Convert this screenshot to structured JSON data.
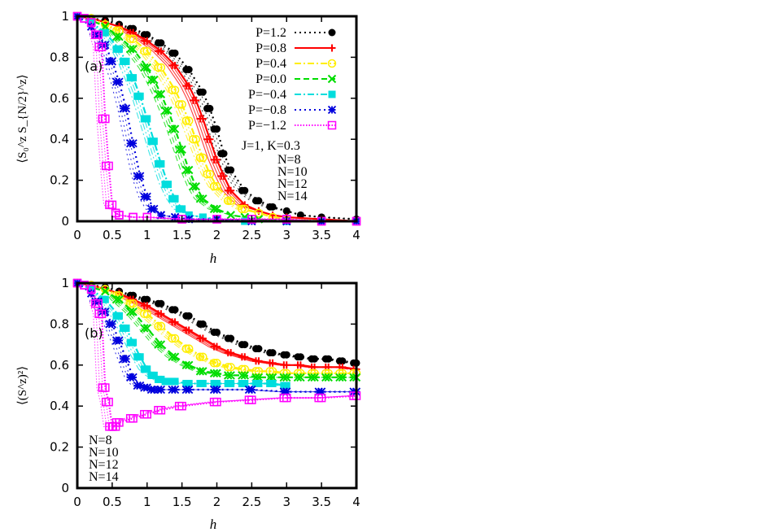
{
  "chart_data": [
    {
      "type": "line",
      "panel_label": "(a)",
      "xlabel": "h",
      "ylabel": "⟨S₀^z S_{N/2}^z⟩",
      "xlim": [
        0,
        4
      ],
      "ylim": [
        0,
        1
      ],
      "xticks": [
        "0",
        "0.5",
        "1",
        "1.5",
        "2",
        "2.5",
        "3",
        "3.5",
        "4"
      ],
      "yticks": [
        "0",
        "0.2",
        "0.4",
        "0.6",
        "0.8",
        "1"
      ],
      "grid": false,
      "legend_position": "top-right",
      "annotation": "J=1, K=0.3",
      "sizes": [
        "N=8",
        "N=10",
        "N=12",
        "N=14"
      ],
      "series": [
        {
          "name": "P=1.2",
          "color": "#000000",
          "marker": "filled-circle",
          "dash": "dot",
          "x": [
            0,
            0.2,
            0.4,
            0.6,
            0.8,
            1.0,
            1.2,
            1.4,
            1.6,
            1.8,
            1.9,
            2.0,
            2.1,
            2.2,
            2.4,
            2.6,
            2.8,
            3.0,
            3.2,
            3.5,
            4.0
          ],
          "y": [
            1.0,
            0.99,
            0.98,
            0.96,
            0.94,
            0.91,
            0.87,
            0.82,
            0.74,
            0.63,
            0.55,
            0.45,
            0.33,
            0.25,
            0.15,
            0.1,
            0.07,
            0.05,
            0.03,
            0.02,
            0.01
          ]
        },
        {
          "name": "P=0.8",
          "color": "#ff0000",
          "marker": "plus",
          "dash": "solid",
          "x": [
            0,
            0.2,
            0.4,
            0.6,
            0.8,
            1.0,
            1.2,
            1.4,
            1.6,
            1.7,
            1.8,
            1.9,
            2.0,
            2.1,
            2.2,
            2.4,
            2.6,
            2.8,
            3.0,
            3.5,
            4.0
          ],
          "y": [
            1.0,
            0.99,
            0.97,
            0.95,
            0.92,
            0.88,
            0.83,
            0.76,
            0.66,
            0.59,
            0.5,
            0.4,
            0.3,
            0.22,
            0.15,
            0.08,
            0.05,
            0.03,
            0.02,
            0.01,
            0.0
          ]
        },
        {
          "name": "P=0.4",
          "color": "#ffee00",
          "marker": "open-circle",
          "dash": "dashdot",
          "x": [
            0,
            0.2,
            0.4,
            0.6,
            0.8,
            1.0,
            1.2,
            1.4,
            1.5,
            1.6,
            1.7,
            1.8,
            1.9,
            2.0,
            2.2,
            2.4,
            2.6,
            2.8,
            3.0,
            3.5,
            4.0
          ],
          "y": [
            1.0,
            0.99,
            0.96,
            0.93,
            0.89,
            0.83,
            0.75,
            0.64,
            0.57,
            0.49,
            0.4,
            0.31,
            0.23,
            0.17,
            0.1,
            0.06,
            0.04,
            0.02,
            0.01,
            0.0,
            0.0
          ]
        },
        {
          "name": "P=0.0",
          "color": "#00dd00",
          "marker": "cross",
          "dash": "dash",
          "x": [
            0,
            0.2,
            0.4,
            0.6,
            0.8,
            1.0,
            1.1,
            1.2,
            1.3,
            1.4,
            1.5,
            1.6,
            1.7,
            1.8,
            2.0,
            2.2,
            2.4,
            2.6,
            3.0,
            3.5,
            4.0
          ],
          "y": [
            1.0,
            0.98,
            0.95,
            0.9,
            0.84,
            0.75,
            0.69,
            0.62,
            0.54,
            0.45,
            0.35,
            0.25,
            0.17,
            0.11,
            0.06,
            0.03,
            0.02,
            0.01,
            0.0,
            0.0,
            0.0
          ]
        },
        {
          "name": "P=−0.4",
          "color": "#00dddd",
          "marker": "filled-square",
          "dash": "dashdot",
          "x": [
            0,
            0.2,
            0.4,
            0.6,
            0.7,
            0.8,
            0.9,
            1.0,
            1.1,
            1.2,
            1.3,
            1.4,
            1.5,
            1.6,
            1.8,
            2.0,
            2.4,
            3.0,
            3.5,
            4.0
          ],
          "y": [
            1.0,
            0.97,
            0.92,
            0.84,
            0.78,
            0.7,
            0.61,
            0.5,
            0.39,
            0.28,
            0.18,
            0.11,
            0.06,
            0.03,
            0.02,
            0.01,
            0.0,
            0.0,
            0.0,
            0.0
          ]
        },
        {
          "name": "P=−0.8",
          "color": "#0000dd",
          "marker": "star",
          "dash": "dot",
          "x": [
            0,
            0.2,
            0.3,
            0.4,
            0.5,
            0.6,
            0.7,
            0.8,
            0.9,
            1.0,
            1.1,
            1.2,
            1.4,
            1.6,
            2.0,
            2.5,
            3.0,
            3.5,
            4.0
          ],
          "y": [
            1.0,
            0.95,
            0.91,
            0.86,
            0.78,
            0.68,
            0.55,
            0.38,
            0.22,
            0.12,
            0.06,
            0.03,
            0.02,
            0.01,
            0.01,
            0.0,
            0.0,
            0.0,
            0.0
          ]
        },
        {
          "name": "P=−1.2",
          "color": "#ff00ff",
          "marker": "open-square",
          "dash": "finedot",
          "x": [
            0,
            0.1,
            0.2,
            0.3,
            0.35,
            0.4,
            0.45,
            0.5,
            0.55,
            0.6,
            0.8,
            1.0,
            1.5,
            2.0,
            2.5,
            3.0,
            3.5,
            4.0
          ],
          "y": [
            1.0,
            0.99,
            0.97,
            0.91,
            0.85,
            0.5,
            0.27,
            0.08,
            0.04,
            0.03,
            0.02,
            0.02,
            0.01,
            0.01,
            0.01,
            0.01,
            0.0,
            0.0
          ]
        }
      ]
    },
    {
      "type": "line",
      "panel_label": "(b)",
      "xlabel": "h",
      "ylabel": "⟨(S^z)²⟩",
      "xlim": [
        0,
        4
      ],
      "ylim": [
        0,
        1
      ],
      "xticks": [
        "0",
        "0.5",
        "1",
        "1.5",
        "2",
        "2.5",
        "3",
        "3.5",
        "4"
      ],
      "yticks": [
        "0",
        "0.2",
        "0.4",
        "0.6",
        "0.8",
        "1"
      ],
      "grid": false,
      "sizes": [
        "N=8",
        "N=10",
        "N=12",
        "N=14"
      ],
      "series": [
        {
          "name": "P=1.2",
          "color": "#000000",
          "marker": "filled-circle",
          "dash": "dot",
          "x": [
            0,
            0.2,
            0.4,
            0.6,
            0.8,
            1.0,
            1.2,
            1.4,
            1.6,
            1.8,
            2.0,
            2.2,
            2.4,
            2.6,
            2.8,
            3.0,
            3.2,
            3.4,
            3.6,
            3.8,
            4.0
          ],
          "y": [
            1.0,
            0.99,
            0.98,
            0.96,
            0.94,
            0.92,
            0.9,
            0.87,
            0.84,
            0.8,
            0.76,
            0.73,
            0.7,
            0.68,
            0.66,
            0.65,
            0.64,
            0.63,
            0.63,
            0.62,
            0.61
          ]
        },
        {
          "name": "P=0.8",
          "color": "#ff0000",
          "marker": "plus",
          "dash": "solid",
          "x": [
            0,
            0.2,
            0.4,
            0.6,
            0.8,
            1.0,
            1.2,
            1.4,
            1.6,
            1.8,
            2.0,
            2.2,
            2.4,
            2.6,
            2.8,
            3.0,
            3.2,
            3.4,
            3.6,
            3.8,
            4.0
          ],
          "y": [
            1.0,
            0.99,
            0.97,
            0.95,
            0.92,
            0.89,
            0.85,
            0.81,
            0.77,
            0.73,
            0.69,
            0.66,
            0.64,
            0.62,
            0.61,
            0.6,
            0.6,
            0.59,
            0.59,
            0.59,
            0.58
          ]
        },
        {
          "name": "P=0.4",
          "color": "#ffee00",
          "marker": "open-circle",
          "dash": "dashdot",
          "x": [
            0,
            0.2,
            0.4,
            0.6,
            0.8,
            1.0,
            1.2,
            1.4,
            1.6,
            1.8,
            2.0,
            2.2,
            2.4,
            2.6,
            2.8,
            3.0,
            3.2,
            3.4,
            3.6,
            3.8,
            4.0
          ],
          "y": [
            1.0,
            0.99,
            0.97,
            0.94,
            0.9,
            0.85,
            0.79,
            0.73,
            0.68,
            0.64,
            0.61,
            0.59,
            0.58,
            0.57,
            0.57,
            0.56,
            0.56,
            0.56,
            0.56,
            0.56,
            0.56
          ]
        },
        {
          "name": "P=0.0",
          "color": "#00dd00",
          "marker": "cross",
          "dash": "dash",
          "x": [
            0,
            0.2,
            0.4,
            0.6,
            0.8,
            1.0,
            1.2,
            1.4,
            1.6,
            1.8,
            2.0,
            2.2,
            2.4,
            2.6,
            2.8,
            3.0,
            3.2,
            3.4,
            3.6,
            3.8,
            4.0
          ],
          "y": [
            1.0,
            0.98,
            0.96,
            0.92,
            0.86,
            0.78,
            0.7,
            0.64,
            0.6,
            0.57,
            0.56,
            0.55,
            0.55,
            0.54,
            0.54,
            0.54,
            0.54,
            0.54,
            0.54,
            0.54,
            0.54
          ]
        },
        {
          "name": "P=−0.4",
          "color": "#00dddd",
          "marker": "filled-square",
          "dash": "dashdot",
          "x": [
            0,
            0.2,
            0.4,
            0.6,
            0.7,
            0.8,
            0.9,
            1.0,
            1.1,
            1.2,
            1.3,
            1.4,
            1.6,
            1.8,
            2.0,
            2.2,
            2.4,
            2.6,
            2.8,
            3.0
          ],
          "y": [
            1.0,
            0.97,
            0.92,
            0.84,
            0.78,
            0.71,
            0.64,
            0.58,
            0.55,
            0.53,
            0.52,
            0.52,
            0.51,
            0.51,
            0.51,
            0.51,
            0.51,
            0.51,
            0.51,
            0.5
          ]
        },
        {
          "name": "P=−0.8",
          "color": "#0000dd",
          "marker": "star",
          "dash": "dot",
          "x": [
            0,
            0.2,
            0.3,
            0.4,
            0.5,
            0.6,
            0.7,
            0.8,
            0.9,
            1.0,
            1.1,
            1.2,
            1.4,
            1.6,
            2.0,
            2.5,
            3.0,
            3.5,
            4.0
          ],
          "y": [
            1.0,
            0.95,
            0.91,
            0.86,
            0.8,
            0.72,
            0.63,
            0.54,
            0.5,
            0.49,
            0.48,
            0.48,
            0.48,
            0.48,
            0.48,
            0.48,
            0.47,
            0.47,
            0.47
          ]
        },
        {
          "name": "P=−1.2",
          "color": "#ff00ff",
          "marker": "open-square",
          "dash": "finedot",
          "x": [
            0,
            0.1,
            0.2,
            0.3,
            0.35,
            0.4,
            0.45,
            0.5,
            0.55,
            0.6,
            0.8,
            1.0,
            1.2,
            1.5,
            2.0,
            2.5,
            3.0,
            3.5,
            4.0
          ],
          "y": [
            1.0,
            0.99,
            0.97,
            0.9,
            0.85,
            0.49,
            0.42,
            0.3,
            0.3,
            0.32,
            0.34,
            0.36,
            0.38,
            0.4,
            0.42,
            0.43,
            0.44,
            0.44,
            0.45
          ]
        }
      ]
    }
  ]
}
